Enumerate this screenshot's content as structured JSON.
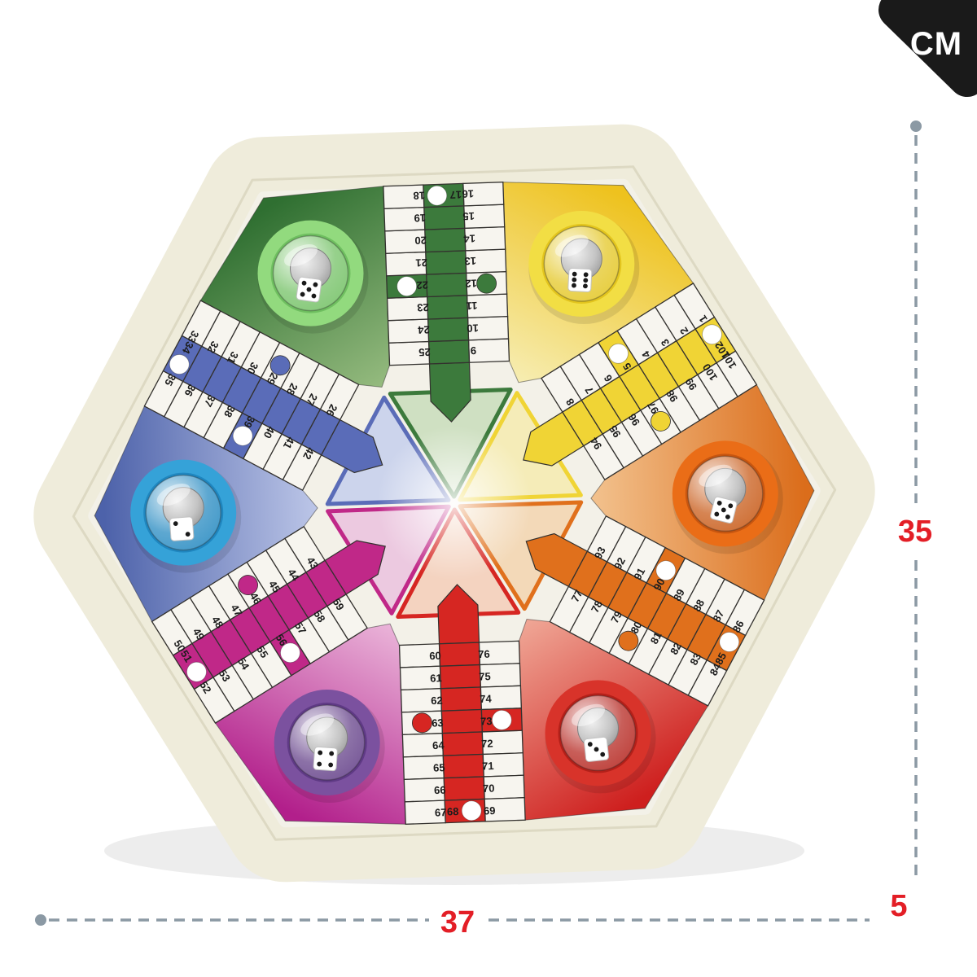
{
  "annotations": {
    "unit_badge": "CM",
    "height_cm": "35",
    "width_cm": "37",
    "depth_cm": "5",
    "dash_color": "#8b99a4",
    "label_color": "#e31e26",
    "badge_bg": "#1a1a1a",
    "badge_text_color": "#ffffff"
  },
  "board": {
    "type": "six-player-parchis-hexagonal-board",
    "frame_color": "#efecdb",
    "face_color": "#f3f1e8",
    "cell_color": "#f7f5ef",
    "line_color": "#33312e",
    "corner_angles": [
      -2,
      58,
      118,
      178,
      238,
      298
    ],
    "corners": [
      {
        "player": "orange",
        "angle": -2,
        "ring": "#ea6d17",
        "ring_dark": "#c65510",
        "grad_outer": "#db6d1b",
        "grad_inner": "#f4c896",
        "die": 5,
        "die_rot": 14
      },
      {
        "player": "red",
        "angle": 58,
        "ring": "#d8332a",
        "ring_dark": "#b32019",
        "grad_outer": "#ce1f1e",
        "grad_inner": "#f2b09e",
        "die": 3,
        "die_rot": -6
      },
      {
        "player": "purple",
        "angle": 118,
        "ring": "#7b519f",
        "ring_dark": "#5f3a85",
        "grad_outer": "#b21f8b",
        "grad_inner": "#eebede",
        "die": 4,
        "die_rot": 4
      },
      {
        "player": "blue",
        "angle": 178,
        "ring": "#35a2d8",
        "ring_dark": "#1f86bf",
        "grad_outer": "#4d62aa",
        "grad_inner": "#c4cdec",
        "die": 2,
        "die_rot": -4
      },
      {
        "player": "green",
        "angle": 238,
        "ring": "#92da7e",
        "ring_dark": "#6fbf60",
        "grad_outer": "#2f6f31",
        "grad_inner": "#9cc084",
        "die": 5,
        "die_rot": 8
      },
      {
        "player": "yellow",
        "angle": 298,
        "ring": "#f2de44",
        "ring_dark": "#e3c51e",
        "grad_outer": "#eec21e",
        "grad_inner": "#f7f0bc",
        "die": 6,
        "die_rot": 3
      }
    ],
    "arms": [
      {
        "player": "green",
        "angle": 268,
        "column_color": "#3c7a3c",
        "triangle_fill": "#cfe0c2",
        "corner_cell": 17,
        "left_col": [
          9,
          10,
          11,
          12,
          13,
          14,
          15,
          16
        ],
        "right_col": [
          25,
          24,
          23,
          22,
          21,
          20,
          19,
          18
        ]
      },
      {
        "player": "yellow",
        "angle": 328,
        "column_color": "#f0d435",
        "triangle_fill": "#f5ecb8",
        "corner_cell": 102,
        "left_col": [
          94,
          95,
          96,
          97,
          98,
          99,
          100,
          101
        ],
        "right_col": [
          8,
          7,
          6,
          5,
          4,
          3,
          2,
          1
        ]
      },
      {
        "player": "orange",
        "angle": 28,
        "column_color": "#e0701c",
        "triangle_fill": "#f3d9b8",
        "corner_cell": 85,
        "left_col": [
          77,
          78,
          79,
          80,
          81,
          82,
          83,
          84
        ],
        "right_col": [
          93,
          92,
          91,
          90,
          89,
          88,
          87,
          86
        ]
      },
      {
        "player": "red",
        "angle": 88,
        "column_color": "#d62622",
        "triangle_fill": "#f4d3c0",
        "corner_cell": 68,
        "left_col": [
          60,
          61,
          62,
          63,
          64,
          65,
          66,
          67
        ],
        "right_col": [
          76,
          75,
          74,
          73,
          72,
          71,
          70,
          69
        ]
      },
      {
        "player": "magenta",
        "angle": 148,
        "column_color": "#c02888",
        "triangle_fill": "#ecc9e0",
        "corner_cell": 51,
        "left_col": [
          43,
          44,
          45,
          46,
          47,
          48,
          49,
          50
        ],
        "right_col": [
          59,
          58,
          57,
          56,
          55,
          54,
          53,
          52
        ]
      },
      {
        "player": "blue",
        "angle": 208,
        "column_color": "#5a6cb8",
        "triangle_fill": "#ccd4ec",
        "corner_cell": 34,
        "left_col": [
          26,
          27,
          28,
          29,
          30,
          31,
          32,
          33
        ],
        "right_col": [
          42,
          41,
          40,
          39,
          38,
          37,
          36,
          35
        ]
      }
    ],
    "safe_cells": {
      "colored_circle_cells": [
        12,
        29,
        46,
        63,
        80,
        97
      ],
      "white_circle_corner_cells": [
        17,
        34,
        51,
        68,
        85,
        102
      ],
      "white_circle_cells": [
        5,
        22,
        39,
        56,
        73,
        90
      ]
    }
  }
}
